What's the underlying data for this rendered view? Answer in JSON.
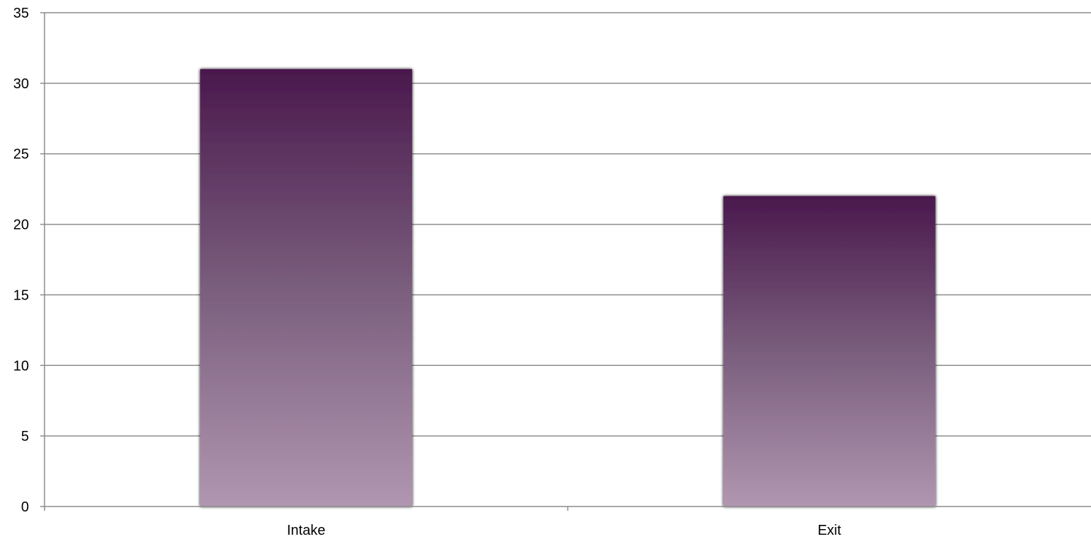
{
  "chart_data": {
    "type": "bar",
    "title": "",
    "xlabel": "",
    "ylabel": "",
    "categories": [
      "Intake",
      "Exit"
    ],
    "values": [
      31,
      22
    ],
    "ylim": [
      0,
      35
    ],
    "ytick_step": 5,
    "grid": true,
    "legend": "none",
    "colors": {
      "bar_top": "#4a184d",
      "bar_mid": "#7a5e7d",
      "bar_bottom": "#b196b1",
      "grid": "#8c8c8c",
      "axis": "#8c8c8c"
    }
  }
}
